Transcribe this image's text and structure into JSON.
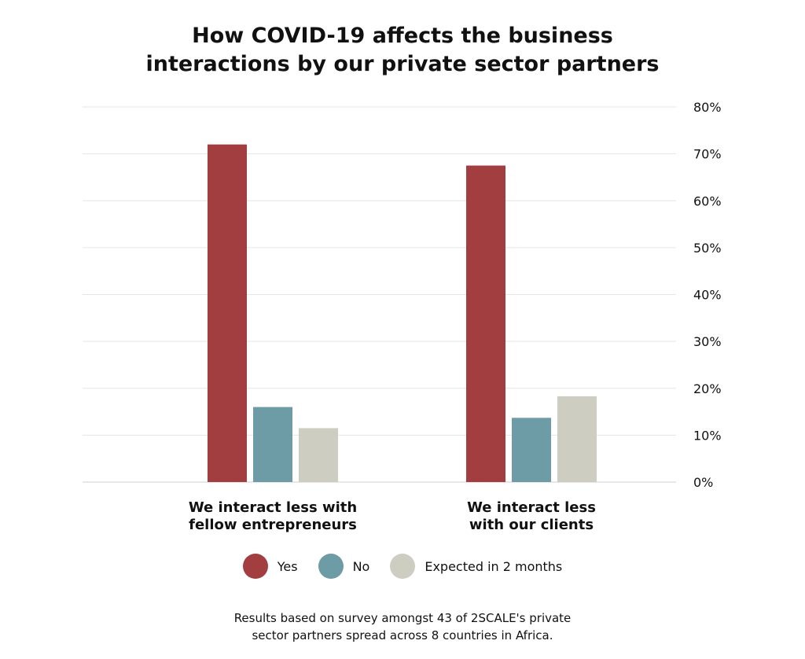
{
  "chart_data": {
    "type": "bar",
    "title": [
      "How COVID-19 affects the business",
      "interactions by our private sector partners"
    ],
    "categories": [
      [
        "We interact less with",
        "fellow entrepreneurs"
      ],
      [
        "We interact less",
        "with our clients"
      ]
    ],
    "series": [
      {
        "name": "Yes",
        "color": "#A23D40",
        "values": [
          72,
          67.5
        ]
      },
      {
        "name": "No",
        "color": "#6D9BA6",
        "values": [
          16,
          13.7
        ]
      },
      {
        "name": "Expected in 2 months",
        "color": "#CDCEC1",
        "values": [
          11.5,
          18.3
        ]
      }
    ],
    "ylim": [
      0,
      80
    ],
    "yticks": [
      "0%",
      "10%",
      "20%",
      "30%",
      "40%",
      "50%",
      "60%",
      "70%",
      "80%"
    ],
    "y_axis_side": "right",
    "grid": true,
    "legend_position": "bottom"
  },
  "footnote": [
    "Results based on survey amongst 43 of 2SCALE's private",
    "sector partners spread across 8 countries in Africa."
  ]
}
